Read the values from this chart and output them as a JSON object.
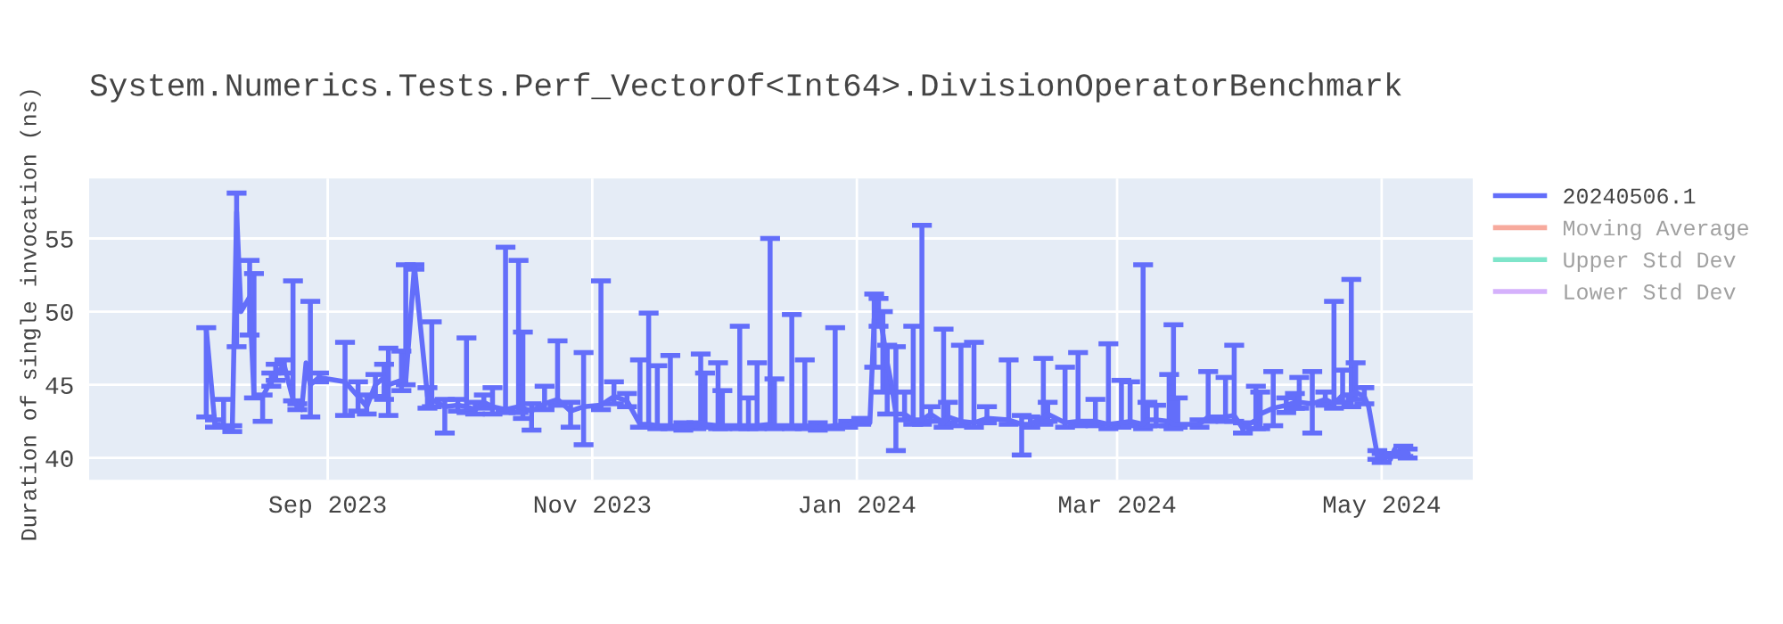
{
  "chart_data": {
    "type": "line",
    "title": "System.Numerics.Tests.Perf_VectorOf<Int64>.DivisionOperatorBenchmark",
    "ylabel": "Duration of single invocation (ns)",
    "xlim": [
      "2023-07-08",
      "2024-05-22"
    ],
    "xticks": [
      {
        "value": "2023-09-01",
        "label": "Sep 2023"
      },
      {
        "value": "2023-11-01",
        "label": "Nov 2023"
      },
      {
        "value": "2024-01-01",
        "label": "Jan 2024"
      },
      {
        "value": "2024-03-01",
        "label": "Mar 2024"
      },
      {
        "value": "2024-05-01",
        "label": "May 2024"
      }
    ],
    "ylim": [
      38.5,
      59.1
    ],
    "yticks": [
      40,
      45,
      50,
      55
    ],
    "grid": true,
    "legend": "right",
    "marker": "none",
    "line_style": "solid",
    "series": [
      {
        "name": "20240506.1",
        "color": "#636efa",
        "x": [
          "2023-08-04",
          "2023-08-06",
          "2023-08-08",
          "2023-08-10",
          "2023-08-11",
          "2023-08-12",
          "2023-08-13",
          "2023-08-14",
          "2023-08-15",
          "2023-08-17",
          "2023-08-19",
          "2023-08-20",
          "2023-08-22",
          "2023-08-24",
          "2023-08-25",
          "2023-08-26",
          "2023-08-27",
          "2023-08-28",
          "2023-08-30",
          "2023-09-05",
          "2023-09-08",
          "2023-09-10",
          "2023-09-12",
          "2023-09-14",
          "2023-09-15",
          "2023-09-18",
          "2023-09-19",
          "2023-09-21",
          "2023-09-24",
          "2023-09-25",
          "2023-09-28",
          "2023-10-01",
          "2023-10-03",
          "2023-10-05",
          "2023-10-07",
          "2023-10-09",
          "2023-10-12",
          "2023-10-15",
          "2023-10-16",
          "2023-10-18",
          "2023-10-21",
          "2023-10-24",
          "2023-10-27",
          "2023-10-30",
          "2023-11-03",
          "2023-11-06",
          "2023-11-09",
          "2023-11-12",
          "2023-11-14",
          "2023-11-16",
          "2023-11-19",
          "2023-11-22",
          "2023-11-25",
          "2023-11-26",
          "2023-11-27",
          "2023-11-30",
          "2023-12-01",
          "2023-12-05",
          "2023-12-07",
          "2023-12-09",
          "2023-12-12",
          "2023-12-13",
          "2023-12-17",
          "2023-12-20",
          "2023-12-23",
          "2023-12-27",
          "2023-12-30",
          "2024-01-02",
          "2024-01-04",
          "2024-01-05",
          "2024-01-06",
          "2024-01-07",
          "2024-01-08",
          "2024-01-09",
          "2024-01-10",
          "2024-01-12",
          "2024-01-14",
          "2024-01-16",
          "2024-01-18",
          "2024-01-21",
          "2024-01-22",
          "2024-01-25",
          "2024-01-28",
          "2024-01-31",
          "2024-02-05",
          "2024-02-08",
          "2024-02-10",
          "2024-02-13",
          "2024-02-14",
          "2024-02-18",
          "2024-02-21",
          "2024-02-25",
          "2024-02-28",
          "2024-03-02",
          "2024-03-04",
          "2024-03-07",
          "2024-03-08",
          "2024-03-10",
          "2024-03-13",
          "2024-03-14",
          "2024-03-15",
          "2024-03-20",
          "2024-03-22",
          "2024-03-26",
          "2024-03-28",
          "2024-03-30",
          "2024-04-02",
          "2024-04-03",
          "2024-04-06",
          "2024-04-09",
          "2024-04-11",
          "2024-04-12",
          "2024-04-15",
          "2024-04-18",
          "2024-04-20",
          "2024-04-22",
          "2024-04-24",
          "2024-04-25",
          "2024-04-27",
          "2024-04-28",
          "2024-04-30",
          "2024-05-01",
          "2024-05-02",
          "2024-05-03",
          "2024-05-04",
          "2024-05-05",
          "2024-05-06",
          "2024-05-07"
        ],
        "values": [
          48.8,
          42.3,
          42.2,
          41.9,
          56.8,
          50.0,
          50.5,
          51.0,
          44.2,
          44.2,
          45.3,
          45.8,
          46.3,
          44.0,
          43.5,
          43.3,
          46.5,
          45.0,
          45.5,
          45.2,
          44.2,
          43.5,
          45.0,
          45.5,
          45.0,
          45.3,
          45.3,
          53.1,
          44.2,
          44.0,
          43.5,
          43.6,
          43.5,
          43.3,
          43.8,
          43.5,
          43.3,
          43.5,
          43.4,
          43.2,
          43.7,
          44.0,
          43.2,
          43.5,
          43.6,
          44.2,
          43.9,
          42.3,
          42.3,
          42.2,
          42.2,
          42.1,
          42.2,
          42.4,
          42.3,
          42.2,
          42.2,
          42.2,
          42.2,
          42.2,
          42.3,
          42.2,
          42.2,
          42.2,
          42.1,
          42.2,
          42.3,
          42.5,
          42.4,
          49.5,
          50.0,
          48.5,
          46.5,
          45.0,
          43.0,
          43.0,
          42.6,
          42.6,
          43.0,
          42.4,
          42.8,
          42.5,
          42.4,
          42.7,
          42.6,
          42.3,
          42.3,
          42.8,
          43.0,
          42.4,
          42.5,
          42.5,
          42.3,
          42.4,
          42.5,
          42.3,
          42.6,
          42.6,
          42.5,
          42.3,
          42.3,
          42.3,
          42.8,
          42.8,
          42.9,
          42.0,
          42.6,
          43.0,
          43.4,
          43.6,
          43.8,
          43.8,
          43.7,
          44.0,
          43.7,
          44.3,
          44.3,
          44.5,
          44.2,
          43.5,
          40.2,
          40.0,
          40.3,
          39.9,
          40.6,
          40.2,
          40.5,
          40.3
        ],
        "errors": [
          [
            42.8,
            48.9
          ],
          [
            42.1,
            42.6
          ],
          [
            42.1,
            44.0
          ],
          [
            41.8,
            42.2
          ],
          [
            47.6,
            58.1
          ],
          null,
          null,
          [
            48.4,
            53.5
          ],
          [
            44.1,
            52.6
          ],
          [
            42.5,
            44.3
          ],
          [
            44.9,
            45.8
          ],
          [
            45.3,
            46.4
          ],
          [
            45.8,
            46.7
          ],
          [
            43.9,
            52.1
          ],
          [
            43.3,
            43.7
          ],
          null,
          null,
          [
            42.8,
            50.7
          ],
          [
            45.2,
            45.8
          ],
          [
            42.9,
            47.9
          ],
          [
            43.2,
            45.2
          ],
          [
            43.0,
            44.3
          ],
          [
            44.2,
            45.7
          ],
          [
            44.0,
            46.4
          ],
          [
            42.9,
            47.5
          ],
          [
            44.6,
            47.3
          ],
          [
            45.0,
            53.2
          ],
          [
            52.9,
            53.2
          ],
          [
            43.4,
            44.8
          ],
          [
            43.5,
            49.3
          ],
          [
            41.7,
            44.0
          ],
          [
            43.2,
            44.0
          ],
          [
            43.1,
            48.2
          ],
          [
            43.0,
            43.8
          ],
          [
            43.4,
            44.3
          ],
          [
            43.0,
            44.8
          ],
          [
            43.1,
            54.4
          ],
          [
            43.1,
            53.5
          ],
          [
            42.7,
            48.6
          ],
          [
            41.9,
            43.7
          ],
          [
            43.3,
            44.9
          ],
          [
            43.6,
            48.0
          ],
          [
            42.1,
            43.8
          ],
          [
            40.9,
            47.2
          ],
          [
            43.3,
            52.1
          ],
          [
            43.7,
            45.2
          ],
          [
            43.5,
            44.4
          ],
          [
            42.1,
            46.7
          ],
          [
            42.1,
            49.9
          ],
          [
            42.0,
            46.3
          ],
          [
            42.0,
            47.0
          ],
          [
            41.9,
            42.4
          ],
          [
            42.0,
            42.4
          ],
          [
            42.2,
            47.1
          ],
          [
            42.1,
            45.8
          ],
          [
            42.0,
            46.5
          ],
          [
            42.0,
            44.6
          ],
          [
            42.0,
            49.0
          ],
          [
            42.0,
            44.1
          ],
          [
            42.0,
            46.5
          ],
          [
            42.1,
            55.0
          ],
          [
            42.0,
            45.4
          ],
          [
            42.0,
            49.8
          ],
          [
            42.0,
            46.7
          ],
          [
            41.9,
            42.4
          ],
          [
            42.0,
            48.9
          ],
          [
            42.1,
            42.5
          ],
          [
            42.3,
            42.7
          ],
          null,
          [
            46.2,
            51.2
          ],
          [
            49.0,
            50.9
          ],
          [
            44.5,
            50.0
          ],
          [
            43.0,
            47.7
          ],
          null,
          [
            40.5,
            47.6
          ],
          [
            42.6,
            44.5
          ],
          [
            42.3,
            49.0
          ],
          [
            42.3,
            55.9
          ],
          [
            42.5,
            43.5
          ],
          [
            42.1,
            48.8
          ],
          [
            42.4,
            43.8
          ],
          [
            42.2,
            47.7
          ],
          [
            42.1,
            47.9
          ],
          [
            42.4,
            43.5
          ],
          [
            42.3,
            46.7
          ],
          [
            40.2,
            42.9
          ],
          [
            42.1,
            42.8
          ],
          [
            42.3,
            46.8
          ],
          [
            42.5,
            43.8
          ],
          [
            42.1,
            46.2
          ],
          [
            42.2,
            47.2
          ],
          [
            42.2,
            44.0
          ],
          [
            42.0,
            47.8
          ],
          [
            42.1,
            45.3
          ],
          [
            42.2,
            45.2
          ],
          [
            42.0,
            53.2
          ],
          [
            42.2,
            43.8
          ],
          [
            42.2,
            43.6
          ],
          [
            42.2,
            45.7
          ],
          [
            42.0,
            49.1
          ],
          [
            42.1,
            44.1
          ],
          [
            42.1,
            42.6
          ],
          [
            42.5,
            45.9
          ],
          [
            42.5,
            45.5
          ],
          [
            42.5,
            47.7
          ],
          [
            41.7,
            42.4
          ],
          [
            42.0,
            44.9
          ],
          [
            42.0,
            44.5
          ],
          [
            42.2,
            45.9
          ],
          [
            43.1,
            44.1
          ],
          [
            43.4,
            44.4
          ],
          [
            43.4,
            45.5
          ],
          [
            41.7,
            45.9
          ],
          [
            43.6,
            44.5
          ],
          [
            43.4,
            50.7
          ],
          [
            43.8,
            46.0
          ],
          [
            43.5,
            52.2
          ],
          [
            44.0,
            46.5
          ],
          [
            43.7,
            44.8
          ],
          null,
          [
            39.9,
            40.5
          ],
          [
            39.7,
            40.3
          ],
          null,
          null,
          null,
          null,
          [
            40.1,
            40.8
          ],
          [
            40.0,
            40.6
          ]
        ]
      },
      {
        "name": "Moving Average",
        "color": "#ef553b"
      },
      {
        "name": "Upper Std Dev",
        "color": "#00cc96"
      },
      {
        "name": "Lower Std Dev",
        "color": "#ab63fa"
      }
    ]
  }
}
